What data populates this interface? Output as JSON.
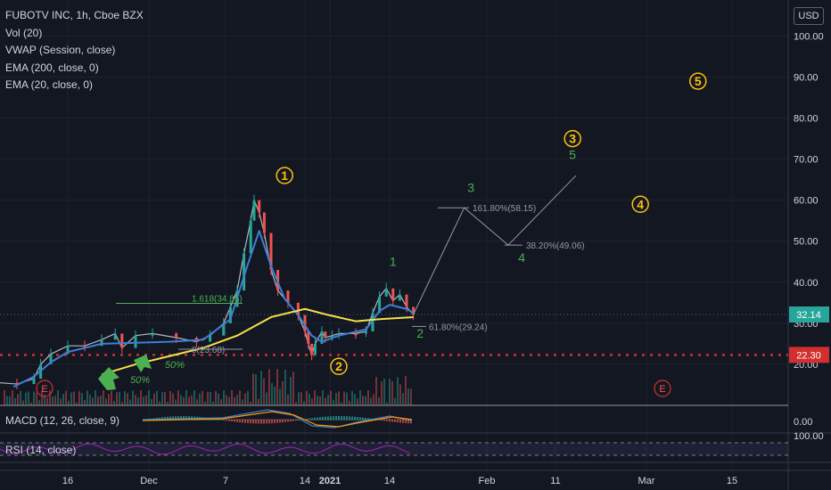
{
  "legend": {
    "symbol": "FUBOTV INC, 1h, Cboe BZX",
    "indicators": [
      "Vol (20)",
      "VWAP (Session, close)",
      "EMA (200, close, 0)",
      "EMA (20, close, 0)"
    ]
  },
  "currency": "USD",
  "macd_label": "MACD (12, 26, close, 9)",
  "rsi_label": "RSI (14, close)",
  "colors": {
    "background": "#131722",
    "ema200": "#f5e04a",
    "ema20": "#3d7fd6",
    "up": "#26a69a",
    "down": "#ef5350",
    "support": "#d32f2f",
    "wave_yellow": "#ffc107",
    "wave_green": "#4caf50",
    "price_badge": "#26a69a",
    "rsi": "#9c27b0"
  },
  "chart_data": {
    "type": "candlestick",
    "title": "FUBOTV INC, 1h, Cboe BZX",
    "y_ticks": [
      "100.00",
      "90.00",
      "80.00",
      "70.00",
      "60.00",
      "50.00",
      "40.00",
      "30.00",
      "20.00"
    ],
    "ylim": [
      10,
      104
    ],
    "x_ticks": [
      "16",
      "Dec",
      "7",
      "14",
      "2021",
      "14",
      "Feb",
      "11",
      "Mar",
      "15"
    ],
    "last_price": "32.14",
    "support_level": "22.30",
    "price_path": [
      [
        0,
        15.5
      ],
      [
        0.05,
        15.2
      ],
      [
        0.1,
        16.5
      ],
      [
        0.12,
        20
      ],
      [
        0.15,
        22.5
      ],
      [
        0.2,
        24.5
      ],
      [
        0.25,
        24.5
      ],
      [
        0.3,
        26
      ],
      [
        0.34,
        27.5
      ],
      [
        0.36,
        24
      ],
      [
        0.4,
        27
      ],
      [
        0.45,
        27.5
      ],
      [
        0.52,
        26.5
      ],
      [
        0.58,
        25.5
      ],
      [
        0.62,
        27
      ],
      [
        0.66,
        30
      ],
      [
        0.68,
        34
      ],
      [
        0.7,
        38
      ],
      [
        0.72,
        47
      ],
      [
        0.74,
        55
      ],
      [
        0.75,
        60
      ],
      [
        0.765,
        57
      ],
      [
        0.78,
        52
      ],
      [
        0.8,
        43
      ],
      [
        0.82,
        38
      ],
      [
        0.85,
        35
      ],
      [
        0.88,
        32
      ],
      [
        0.9,
        28
      ],
      [
        0.91,
        25
      ],
      [
        0.92,
        22.3
      ],
      [
        0.93,
        25
      ],
      [
        0.95,
        28
      ],
      [
        0.96,
        26.5
      ],
      [
        0.98,
        27
      ],
      [
        1.0,
        27.5
      ],
      [
        1.05,
        27.5
      ],
      [
        1.08,
        28
      ],
      [
        1.1,
        32.5
      ],
      [
        1.12,
        36.5
      ],
      [
        1.14,
        38.5
      ],
      [
        1.16,
        35.5
      ],
      [
        1.18,
        37
      ],
      [
        1.2,
        34
      ],
      [
        1.22,
        32.1
      ]
    ],
    "ema20_path": [
      [
        0.04,
        14.5
      ],
      [
        0.1,
        17
      ],
      [
        0.15,
        20.5
      ],
      [
        0.2,
        23
      ],
      [
        0.3,
        25
      ],
      [
        0.5,
        25.5
      ],
      [
        0.6,
        26
      ],
      [
        0.68,
        31
      ],
      [
        0.73,
        44
      ],
      [
        0.765,
        52.5
      ],
      [
        0.8,
        44
      ],
      [
        0.84,
        36
      ],
      [
        0.88,
        32
      ],
      [
        0.92,
        27
      ],
      [
        0.95,
        25.5
      ],
      [
        1.0,
        27
      ],
      [
        1.08,
        28.5
      ],
      [
        1.12,
        33
      ],
      [
        1.15,
        34.5
      ],
      [
        1.2,
        33.5
      ],
      [
        1.22,
        32.5
      ]
    ],
    "ema200_path": [
      [
        0.3,
        17.5
      ],
      [
        0.4,
        20
      ],
      [
        0.5,
        22
      ],
      [
        0.6,
        24
      ],
      [
        0.7,
        27
      ],
      [
        0.8,
        31.5
      ],
      [
        0.9,
        33.5
      ],
      [
        0.97,
        32
      ],
      [
        1.05,
        30.5
      ],
      [
        1.12,
        31
      ],
      [
        1.22,
        31.5
      ]
    ],
    "projection_path": [
      [
        1.22,
        32.14
      ],
      [
        1.37,
        58.15
      ],
      [
        1.5,
        49.06
      ],
      [
        1.7,
        66
      ]
    ],
    "fib_levels": [
      {
        "label": "1.618(34.85)",
        "value": 34.85
      },
      {
        "label": "0(23.68)",
        "value": 23.68
      },
      {
        "label": "61.80%(29.24)",
        "value": 29.24
      },
      {
        "label": "38.20%(49.06)",
        "value": 49.06
      },
      {
        "label": "161.80%(58.15)",
        "value": 58.15
      },
      {
        "label": "50%",
        "value": 25
      },
      {
        "label": "50%",
        "value": 19
      }
    ],
    "wave_labels_yellow": [
      {
        "label": "1",
        "x": 0.84,
        "y": 66
      },
      {
        "label": "2",
        "x": 1.0,
        "y": 19.5
      },
      {
        "label": "3",
        "x": 1.69,
        "y": 75
      },
      {
        "label": "4",
        "x": 1.89,
        "y": 59
      },
      {
        "label": "5",
        "x": 2.06,
        "y": 89
      }
    ],
    "wave_labels_green": [
      {
        "label": "1",
        "x": 1.16,
        "y": 44
      },
      {
        "label": "2",
        "x": 1.24,
        "y": 26.5
      },
      {
        "label": "3",
        "x": 1.39,
        "y": 62
      },
      {
        "label": "4",
        "x": 1.54,
        "y": 45
      },
      {
        "label": "5",
        "x": 1.69,
        "y": 70
      }
    ],
    "earnings_markers": [
      "E",
      "E"
    ]
  }
}
